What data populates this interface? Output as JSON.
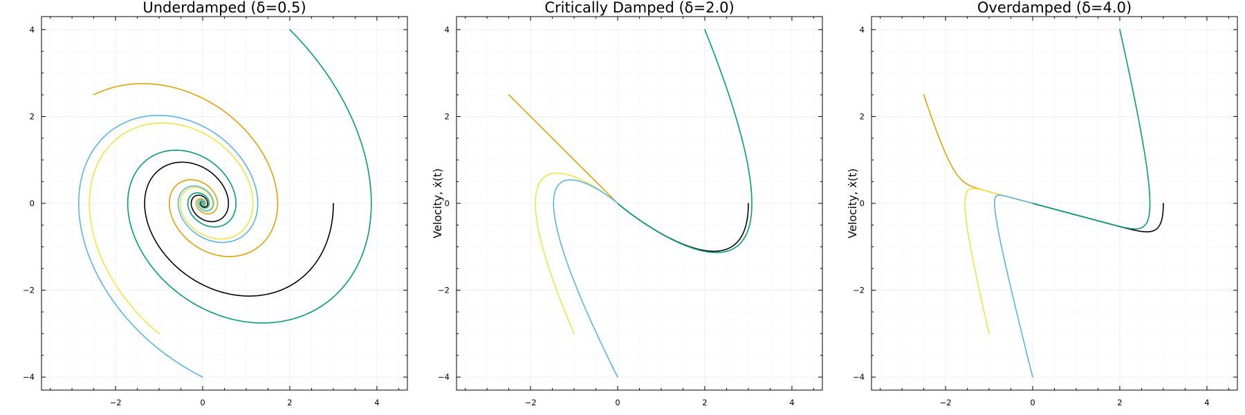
{
  "chart_data": [
    {
      "type": "line",
      "title": "Underdamped (δ=0.5)",
      "xlabel": "",
      "ylabel": "",
      "xlim": [
        -3.7,
        4.7
      ],
      "ylim": [
        -4.3,
        4.3
      ],
      "xticks": [
        "−2",
        "0",
        "2",
        "4"
      ],
      "yticks": [
        "−4",
        "−2",
        "0",
        "2",
        "4"
      ],
      "grid": true,
      "legend": "none",
      "params": {
        "delta": 0.5
      },
      "series": [
        {
          "color": "#000000",
          "x0": 3.0,
          "v0": 0.0
        },
        {
          "color": "#009E73",
          "x0": 2.0,
          "v0": 4.0
        },
        {
          "color": "#E69F00",
          "x0": -2.5,
          "v0": 2.5
        },
        {
          "color": "#F0E442",
          "x0": -1.0,
          "v0": -3.0
        },
        {
          "color": "#56B4E9",
          "x0": 0.0,
          "v0": -4.0
        }
      ]
    },
    {
      "type": "line",
      "title": "Critically Damped (δ=2.0)",
      "xlabel": "",
      "ylabel": "Velocity, ẋ(t)",
      "xlim": [
        -3.7,
        4.7
      ],
      "ylim": [
        -4.3,
        4.3
      ],
      "xticks": [
        "−2",
        "0",
        "2",
        "4"
      ],
      "yticks": [
        "−4",
        "−2",
        "0",
        "2",
        "4"
      ],
      "grid": true,
      "legend": "none",
      "params": {
        "delta": 2.0
      },
      "series": [
        {
          "color": "#000000",
          "x0": 3.0,
          "v0": 0.0
        },
        {
          "color": "#009E73",
          "x0": 2.0,
          "v0": 4.0
        },
        {
          "color": "#E69F00",
          "x0": -2.5,
          "v0": 2.5
        },
        {
          "color": "#F0E442",
          "x0": -1.0,
          "v0": -3.0
        },
        {
          "color": "#56B4E9",
          "x0": 0.0,
          "v0": -4.0
        }
      ]
    },
    {
      "type": "line",
      "title": "Overdamped (δ=4.0)",
      "xlabel": "",
      "ylabel": "Velocity, ẋ(t)",
      "xlim": [
        -3.7,
        4.7
      ],
      "ylim": [
        -4.3,
        4.3
      ],
      "xticks": [
        "−2",
        "0",
        "2",
        "4"
      ],
      "yticks": [
        "−4",
        "−2",
        "0",
        "2",
        "4"
      ],
      "grid": true,
      "legend": "none",
      "params": {
        "delta": 4.0
      },
      "series": [
        {
          "color": "#000000",
          "x0": 3.0,
          "v0": 0.0
        },
        {
          "color": "#009E73",
          "x0": 2.0,
          "v0": 4.0
        },
        {
          "color": "#E69F00",
          "x0": -2.5,
          "v0": 2.5
        },
        {
          "color": "#F0E442",
          "x0": -1.0,
          "v0": -3.0
        },
        {
          "color": "#56B4E9",
          "x0": 0.0,
          "v0": -4.0
        }
      ]
    }
  ]
}
